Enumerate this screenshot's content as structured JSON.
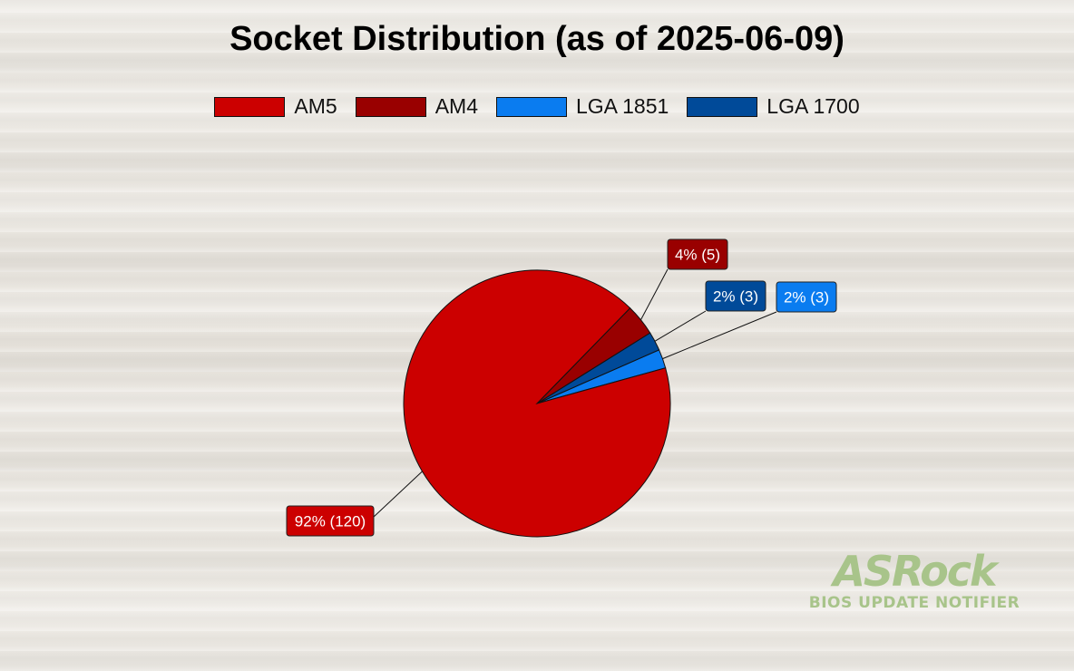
{
  "chart_data": {
    "type": "pie",
    "title": "Socket Distribution (as of 2025-06-09)",
    "legend_position": "top",
    "slices": [
      {
        "label": "AM5",
        "value": 120,
        "percent_label": "92% (120)",
        "color": "#cc0000"
      },
      {
        "label": "AM4",
        "value": 5,
        "percent_label": "4% (5)",
        "color": "#990000"
      },
      {
        "label": "LGA 1700",
        "value": 3,
        "percent_label": "2% (3)",
        "color": "#004a99"
      },
      {
        "label": "LGA 1851",
        "value": 3,
        "percent_label": "2% (3)",
        "color": "#0a7cf0"
      }
    ],
    "legend_order": [
      "AM5",
      "AM4",
      "LGA 1851",
      "LGA 1700"
    ]
  },
  "logo": {
    "brand": "ASRock",
    "tagline": "BIOS UPDATE NOTIFIER"
  }
}
